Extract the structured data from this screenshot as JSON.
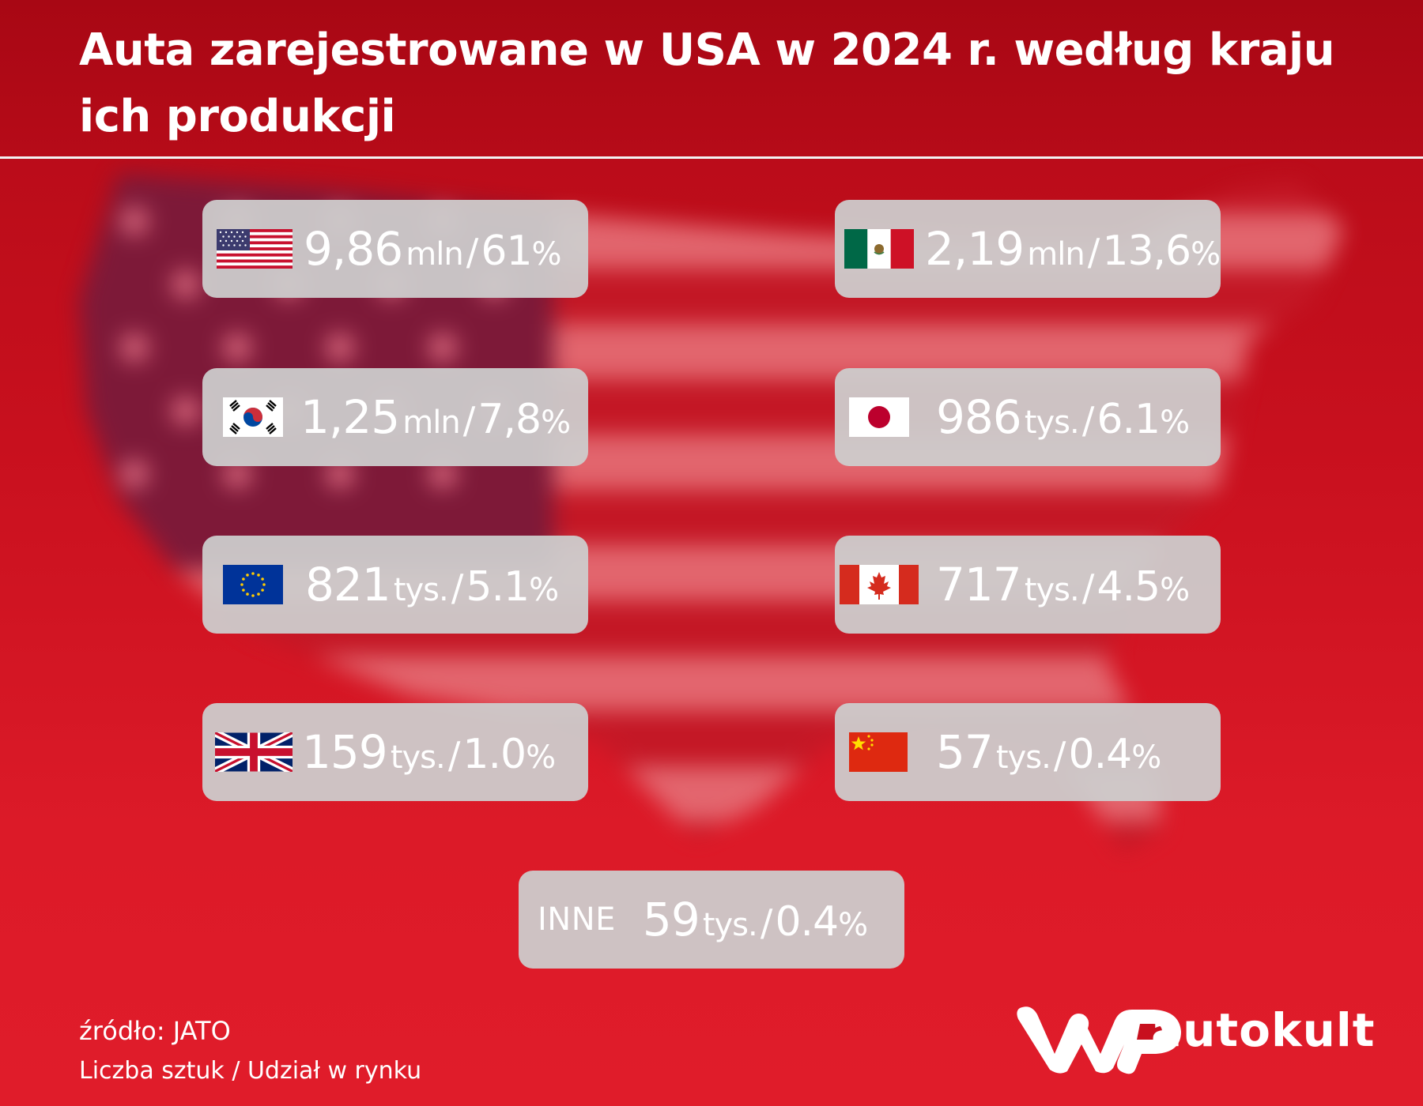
{
  "title": "Auta zarejestrowane w USA w 2024 r. według kraju ich produkcji",
  "colors": {
    "header": "#b00a16",
    "background": "#d41624",
    "card": "#cdcdcd",
    "text": "#ffffff"
  },
  "chart_data": {
    "type": "table",
    "title": "Auta zarejestrowane w USA w 2024 r. według kraju ich produkcji",
    "columns": [
      "Liczba sztuk",
      "Udział w rynku"
    ],
    "rows": [
      {
        "flag": "usa-flag-icon",
        "count": "9,86",
        "unit": "mln",
        "share": "61",
        "share_unit": "%"
      },
      {
        "flag": "mexico-flag-icon",
        "count": "2,19",
        "unit": "mln",
        "share": "13,6",
        "share_unit": "%"
      },
      {
        "flag": "south-korea-flag-icon",
        "count": "1,25",
        "unit": "mln",
        "share": "7,8",
        "share_unit": "%"
      },
      {
        "flag": "japan-flag-icon",
        "count": "986",
        "unit": "tys.",
        "share": "6.1",
        "share_unit": "%"
      },
      {
        "flag": "eu-flag-icon",
        "count": "821",
        "unit": "tys.",
        "share": "5.1",
        "share_unit": "%"
      },
      {
        "flag": "canada-flag-icon",
        "count": "717",
        "unit": "tys.",
        "share": "4.5",
        "share_unit": "%"
      },
      {
        "flag": "uk-flag-icon",
        "count": "159",
        "unit": "tys.",
        "share": "1.0",
        "share_unit": "%"
      },
      {
        "flag": "china-flag-icon",
        "count": "57",
        "unit": "tys.",
        "share": "0.4",
        "share_unit": "%"
      },
      {
        "label": "INNE",
        "count": "59",
        "unit": "tys.",
        "share": "0.4",
        "share_unit": "%"
      }
    ]
  },
  "separator": "/",
  "footer": {
    "source": "źródło: JATO",
    "measure": "Liczba sztuk / Udział w rynku"
  },
  "brand": {
    "logo": "wp-logo-icon",
    "name": "autokult"
  }
}
